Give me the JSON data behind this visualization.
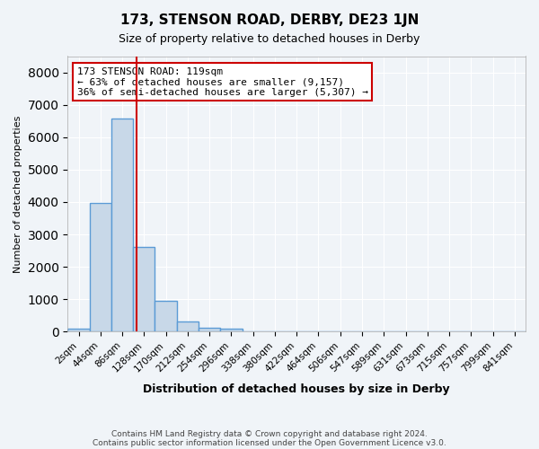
{
  "title": "173, STENSON ROAD, DERBY, DE23 1JN",
  "subtitle": "Size of property relative to detached houses in Derby",
  "xlabel": "Distribution of detached houses by size in Derby",
  "ylabel": "Number of detached properties",
  "bin_labels": [
    "2sqm",
    "44sqm",
    "86sqm",
    "128sqm",
    "170sqm",
    "212sqm",
    "254sqm",
    "296sqm",
    "338sqm",
    "380sqm",
    "422sqm",
    "464sqm",
    "506sqm",
    "547sqm",
    "589sqm",
    "631sqm",
    "673sqm",
    "715sqm",
    "757sqm",
    "799sqm",
    "841sqm"
  ],
  "bin_values": [
    80,
    3960,
    6580,
    2600,
    960,
    300,
    120,
    80,
    0,
    0,
    0,
    0,
    0,
    0,
    0,
    0,
    0,
    0,
    0,
    0,
    0
  ],
  "bar_color": "#c8d8e8",
  "bar_edge_color": "#5b9bd5",
  "bar_linewidth": 1.0,
  "vline_x": 2.67,
  "vline_color": "#cc0000",
  "vline_linewidth": 1.5,
  "annotation_text": "173 STENSON ROAD: 119sqm\n← 63% of detached houses are smaller (9,157)\n36% of semi-detached houses are larger (5,307) →",
  "annotation_box_color": "#ffffff",
  "annotation_box_edge": "#cc0000",
  "ylim": [
    0,
    8500
  ],
  "yticks": [
    0,
    1000,
    2000,
    3000,
    4000,
    5000,
    6000,
    7000,
    8000
  ],
  "bg_color": "#f0f4f8",
  "grid_color": "#ffffff",
  "footer_line1": "Contains HM Land Registry data © Crown copyright and database right 2024.",
  "footer_line2": "Contains public sector information licensed under the Open Government Licence v3.0."
}
